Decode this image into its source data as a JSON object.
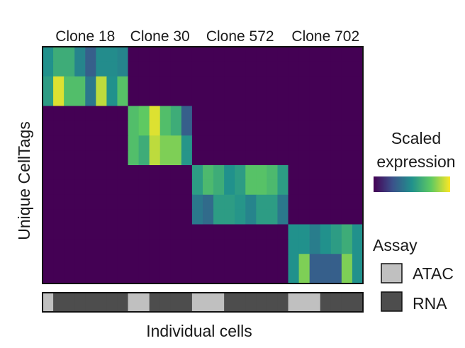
{
  "chart_data": {
    "type": "heatmap",
    "xlabel": "Individual cells",
    "ylabel": "Unique CellTags",
    "column_groups": [
      "Clone 18",
      "Clone 30",
      "Clone 572",
      "Clone 702"
    ],
    "colorbar": {
      "title_lines": [
        "Scaled",
        "expression"
      ],
      "colormap": "viridis",
      "range": [
        0,
        1
      ],
      "colors": [
        "#440154",
        "#3b528b",
        "#21918c",
        "#5ec962",
        "#fde725"
      ]
    },
    "legend": {
      "title": "Assay",
      "entries": [
        {
          "label": "ATAC",
          "color": "#c0c0c0"
        },
        {
          "label": "RNA",
          "color": "#4d4d4d"
        }
      ]
    },
    "cell_assay": [
      "ATAC",
      "RNA",
      "RNA",
      "RNA",
      "RNA",
      "RNA",
      "RNA",
      "RNA",
      "ATAC",
      "ATAC",
      "RNA",
      "RNA",
      "RNA",
      "RNA",
      "ATAC",
      "ATAC",
      "ATAC",
      "RNA",
      "RNA",
      "RNA",
      "RNA",
      "RNA",
      "RNA",
      "ATAC",
      "ATAC",
      "ATAC",
      "RNA",
      "RNA",
      "RNA",
      "RNA"
    ],
    "matrix": [
      [
        0.5,
        0.62,
        0.62,
        0.45,
        0.3,
        0.48,
        0.48,
        0.45,
        0,
        0,
        0,
        0,
        0,
        0,
        0,
        0,
        0,
        0,
        0,
        0,
        0,
        0,
        0,
        0,
        0,
        0,
        0,
        0,
        0,
        0
      ],
      [
        0.5,
        0.62,
        0.62,
        0.45,
        0.3,
        0.48,
        0.48,
        0.45,
        0,
        0,
        0,
        0,
        0,
        0,
        0,
        0,
        0,
        0,
        0,
        0,
        0,
        0,
        0,
        0,
        0,
        0,
        0,
        0,
        0,
        0
      ],
      [
        0.55,
        0.95,
        0.7,
        0.7,
        0.4,
        0.9,
        0.5,
        0.72,
        0,
        0,
        0,
        0,
        0,
        0,
        0,
        0,
        0,
        0,
        0,
        0,
        0,
        0,
        0,
        0,
        0,
        0,
        0,
        0,
        0,
        0
      ],
      [
        0.55,
        0.95,
        0.7,
        0.7,
        0.4,
        0.9,
        0.5,
        0.72,
        0,
        0,
        0,
        0,
        0,
        0,
        0,
        0,
        0,
        0,
        0,
        0,
        0,
        0,
        0,
        0,
        0,
        0,
        0,
        0,
        0,
        0
      ],
      [
        0,
        0,
        0,
        0,
        0,
        0,
        0,
        0,
        0.7,
        0.75,
        0.95,
        0.7,
        0.62,
        0.3,
        0,
        0,
        0,
        0,
        0,
        0,
        0,
        0,
        0,
        0,
        0,
        0,
        0,
        0,
        0,
        0
      ],
      [
        0,
        0,
        0,
        0,
        0,
        0,
        0,
        0,
        0.7,
        0.75,
        0.95,
        0.7,
        0.62,
        0.3,
        0,
        0,
        0,
        0,
        0,
        0,
        0,
        0,
        0,
        0,
        0,
        0,
        0,
        0,
        0,
        0
      ],
      [
        0,
        0,
        0,
        0,
        0,
        0,
        0,
        0,
        0.7,
        0.62,
        0.9,
        0.8,
        0.8,
        0.52,
        0,
        0,
        0,
        0,
        0,
        0,
        0,
        0,
        0,
        0,
        0,
        0,
        0,
        0,
        0,
        0
      ],
      [
        0,
        0,
        0,
        0,
        0,
        0,
        0,
        0,
        0.7,
        0.62,
        0.9,
        0.8,
        0.8,
        0.52,
        0,
        0,
        0,
        0,
        0,
        0,
        0,
        0,
        0,
        0,
        0,
        0,
        0,
        0,
        0,
        0
      ],
      [
        0,
        0,
        0,
        0,
        0,
        0,
        0,
        0,
        0,
        0,
        0,
        0,
        0,
        0,
        0.55,
        0.68,
        0.62,
        0.5,
        0.55,
        0.72,
        0.72,
        0.68,
        0.55,
        0,
        0,
        0,
        0,
        0,
        0,
        0
      ],
      [
        0,
        0,
        0,
        0,
        0,
        0,
        0,
        0,
        0,
        0,
        0,
        0,
        0,
        0,
        0.55,
        0.68,
        0.62,
        0.5,
        0.55,
        0.72,
        0.72,
        0.68,
        0.55,
        0,
        0,
        0,
        0,
        0,
        0,
        0
      ],
      [
        0,
        0,
        0,
        0,
        0,
        0,
        0,
        0,
        0,
        0,
        0,
        0,
        0,
        0,
        0.4,
        0.35,
        0.55,
        0.55,
        0.52,
        0.45,
        0.55,
        0.55,
        0.4,
        0,
        0,
        0,
        0,
        0,
        0,
        0
      ],
      [
        0,
        0,
        0,
        0,
        0,
        0,
        0,
        0,
        0,
        0,
        0,
        0,
        0,
        0,
        0.4,
        0.35,
        0.55,
        0.55,
        0.52,
        0.45,
        0.55,
        0.55,
        0.4,
        0,
        0,
        0,
        0,
        0,
        0,
        0
      ],
      [
        0,
        0,
        0,
        0,
        0,
        0,
        0,
        0,
        0,
        0,
        0,
        0,
        0,
        0,
        0,
        0,
        0,
        0,
        0,
        0,
        0,
        0,
        0,
        0.5,
        0.5,
        0.42,
        0.5,
        0.55,
        0.62,
        0.5
      ],
      [
        0,
        0,
        0,
        0,
        0,
        0,
        0,
        0,
        0,
        0,
        0,
        0,
        0,
        0,
        0,
        0,
        0,
        0,
        0,
        0,
        0,
        0,
        0,
        0.5,
        0.5,
        0.42,
        0.5,
        0.55,
        0.62,
        0.5
      ],
      [
        0,
        0,
        0,
        0,
        0,
        0,
        0,
        0,
        0,
        0,
        0,
        0,
        0,
        0,
        0,
        0,
        0,
        0,
        0,
        0,
        0,
        0,
        0,
        0.5,
        0.8,
        0.3,
        0.3,
        0.3,
        0.8,
        0.5
      ],
      [
        0,
        0,
        0,
        0,
        0,
        0,
        0,
        0,
        0,
        0,
        0,
        0,
        0,
        0,
        0,
        0,
        0,
        0,
        0,
        0,
        0,
        0,
        0,
        0.5,
        0.8,
        0.3,
        0.3,
        0.3,
        0.8,
        0.5
      ]
    ]
  }
}
